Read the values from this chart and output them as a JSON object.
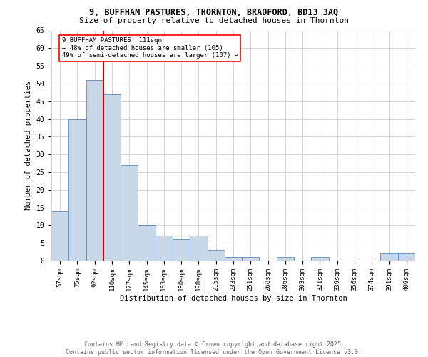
{
  "title_line1": "9, BUFFHAM PASTURES, THORNTON, BRADFORD, BD13 3AQ",
  "title_line2": "Size of property relative to detached houses in Thornton",
  "categories": [
    "57sqm",
    "75sqm",
    "92sqm",
    "110sqm",
    "127sqm",
    "145sqm",
    "163sqm",
    "180sqm",
    "198sqm",
    "215sqm",
    "233sqm",
    "251sqm",
    "268sqm",
    "286sqm",
    "303sqm",
    "321sqm",
    "339sqm",
    "356sqm",
    "374sqm",
    "391sqm",
    "409sqm"
  ],
  "values": [
    14,
    40,
    51,
    47,
    27,
    10,
    7,
    6,
    7,
    3,
    1,
    1,
    0,
    1,
    0,
    1,
    0,
    0,
    0,
    2,
    2
  ],
  "bar_color": "#c8d8e8",
  "bar_edge_color": "#5a8ab5",
  "vline_color": "#cc0000",
  "vline_x_index": 3,
  "marker_label_line1": "9 BUFFHAM PASTURES: 111sqm",
  "marker_label_line2": "← 48% of detached houses are smaller (105)",
  "marker_label_line3": "49% of semi-detached houses are larger (107) →",
  "ylabel": "Number of detached properties",
  "xlabel": "Distribution of detached houses by size in Thornton",
  "ylim": [
    0,
    65
  ],
  "yticks": [
    0,
    5,
    10,
    15,
    20,
    25,
    30,
    35,
    40,
    45,
    50,
    55,
    60,
    65
  ],
  "footnote_line1": "Contains HM Land Registry data © Crown copyright and database right 2025.",
  "footnote_line2": "Contains public sector information licensed under the Open Government Licence v3.0.",
  "bg_color": "#ffffff",
  "grid_color": "#cccccc"
}
